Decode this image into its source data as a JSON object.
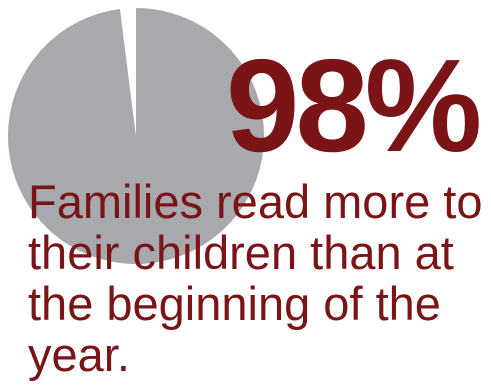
{
  "colors": {
    "pie_fill": "#a7a9ac",
    "accent": "#7a1416"
  },
  "stat": {
    "value_label": "98%"
  },
  "caption": {
    "text": "Families read more to their children than at the beginning of the year."
  },
  "chart_data": {
    "type": "pie",
    "title": "",
    "slices": [
      {
        "label": "",
        "value": 98
      },
      {
        "label": "",
        "value": 2
      }
    ],
    "legend": "none",
    "grid": false
  }
}
